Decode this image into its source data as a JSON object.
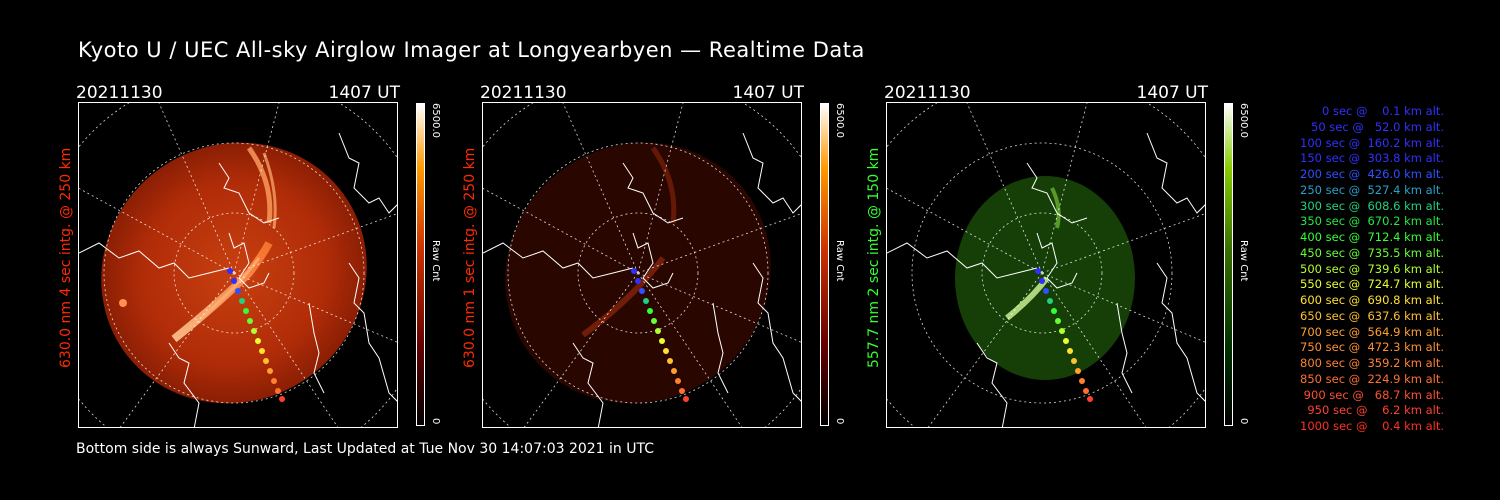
{
  "title": "Kyoto U / UEC All-sky Airglow Imager at Longyearbyen — Realtime Data",
  "footer": "Bottom side is always Sunward, Last Updated at Tue Nov 30 14:07:03 2021 in UTC",
  "panels": [
    {
      "date": "20211130",
      "time": "1407 UT",
      "ylabel": "630.0 nm 4 sec intg. @ 250 km",
      "ylabel_color": "#ff2a00",
      "colorbar_max": "6500.0",
      "colorbar_min": "0",
      "colorbar_unit": "Raw Cnt",
      "colormap": "red"
    },
    {
      "date": "20211130",
      "time": "1407 UT",
      "ylabel": "630.0 nm 1 sec intg. @ 250 km",
      "ylabel_color": "#ff2a00",
      "colorbar_max": "6500.0",
      "colorbar_min": "0",
      "colorbar_unit": "Raw Cnt",
      "colormap": "red-dim"
    },
    {
      "date": "20211130",
      "time": "1407 UT",
      "ylabel": "557.7 nm 2 sec intg. @ 150 km",
      "ylabel_color": "#33ff33",
      "colorbar_max": "6500.0",
      "colorbar_min": "0",
      "colorbar_unit": "Raw Cnt",
      "colormap": "green"
    }
  ],
  "legend": [
    {
      "text": "   0 sec @    0.1 km alt.",
      "color": "#3030ff"
    },
    {
      "text": "  50 sec @   52.0 km alt.",
      "color": "#3030ff"
    },
    {
      "text": " 100 sec @  160.2 km alt.",
      "color": "#3030ff"
    },
    {
      "text": " 150 sec @  303.8 km alt.",
      "color": "#3030ff"
    },
    {
      "text": " 200 sec @  426.0 km alt.",
      "color": "#3050ff"
    },
    {
      "text": " 250 sec @  527.4 km alt.",
      "color": "#2aa0c8"
    },
    {
      "text": " 300 sec @  608.6 km alt.",
      "color": "#22d080"
    },
    {
      "text": " 350 sec @  670.2 km alt.",
      "color": "#22e840"
    },
    {
      "text": " 400 sec @  712.4 km alt.",
      "color": "#33ff33"
    },
    {
      "text": " 450 sec @  735.5 km alt.",
      "color": "#66ff33"
    },
    {
      "text": " 500 sec @  739.6 km alt.",
      "color": "#b0ff30"
    },
    {
      "text": " 550 sec @  724.7 km alt.",
      "color": "#e8ff30"
    },
    {
      "text": " 600 sec @  690.8 km alt.",
      "color": "#ffe030"
    },
    {
      "text": " 650 sec @  637.6 km alt.",
      "color": "#ffc030"
    },
    {
      "text": " 700 sec @  564.9 km alt.",
      "color": "#ffa030"
    },
    {
      "text": " 750 sec @  472.3 km alt.",
      "color": "#ff9030"
    },
    {
      "text": " 800 sec @  359.2 km alt.",
      "color": "#ff8030"
    },
    {
      "text": " 850 sec @  224.9 km alt.",
      "color": "#ff7030"
    },
    {
      "text": " 900 sec @   68.7 km alt.",
      "color": "#ff5030"
    },
    {
      "text": " 950 sec @    6.2 km alt.",
      "color": "#ff4030"
    },
    {
      "text": "1000 sec @    0.4 km alt.",
      "color": "#ff3020"
    }
  ]
}
